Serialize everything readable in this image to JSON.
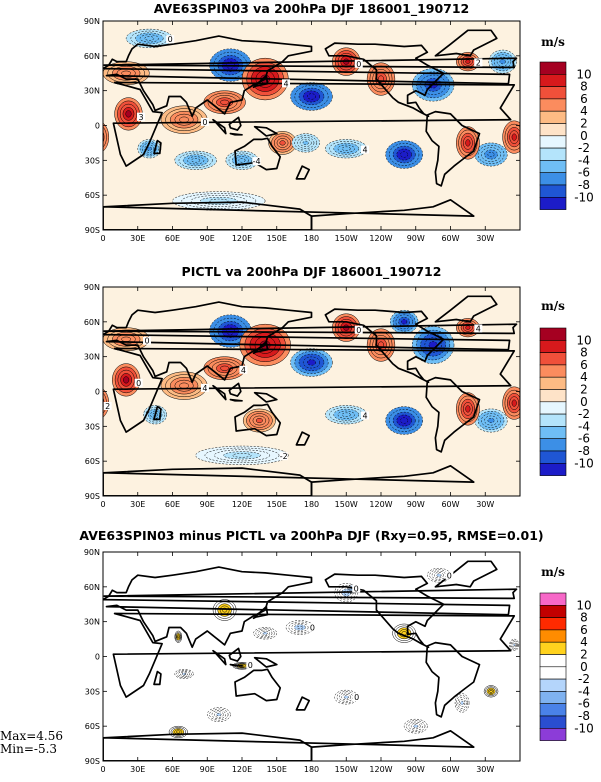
{
  "chart_data": [
    {
      "type": "heatmap",
      "title": "AVE63SPIN03 va 200hPa DJF 186001_190712",
      "unit": "m/s",
      "x_ticks": [
        "0",
        "30E",
        "60E",
        "90E",
        "120E",
        "150E",
        "180",
        "150W",
        "120W",
        "90W",
        "60W",
        "30W"
      ],
      "y_ticks": [
        "90N",
        "60N",
        "30N",
        "0",
        "30S",
        "60S",
        "90S"
      ],
      "colorbar_levels": [
        "10",
        "8",
        "6",
        "4",
        "2",
        "0",
        "-2",
        "-4",
        "-6",
        "-8",
        "-10"
      ],
      "colorbar_colors": [
        "#a50021",
        "#d7191c",
        "#f0503a",
        "#fb8c5e",
        "#fdbb84",
        "#fee3c8",
        "#e6f7ff",
        "#b4e4fb",
        "#6fbef5",
        "#3c8fe6",
        "#1f56d4",
        "#1c1cc8"
      ],
      "contour_labels": [
        "4",
        "0",
        "0",
        "4",
        "-4",
        "0",
        "4",
        "0",
        "2",
        "3"
      ],
      "blobs": [
        {
          "lon": -75,
          "lat": 35,
          "v": -8,
          "rx": 18,
          "ry": 14
        },
        {
          "lon": -45,
          "lat": 55,
          "v": 6,
          "rx": 10,
          "ry": 8
        },
        {
          "lon": -5,
          "lat": -10,
          "v": 7,
          "rx": 10,
          "ry": 14
        },
        {
          "lon": -25,
          "lat": -25,
          "v": -5,
          "rx": 14,
          "ry": 10
        },
        {
          "lon": 22,
          "lat": 10,
          "v": 8,
          "rx": 12,
          "ry": 14
        },
        {
          "lon": 20,
          "lat": 45,
          "v": 3,
          "rx": 20,
          "ry": 10
        },
        {
          "lon": 40,
          "lat": -20,
          "v": -4,
          "rx": 10,
          "ry": 8
        },
        {
          "lon": 70,
          "lat": 5,
          "v": 3,
          "rx": 20,
          "ry": 12
        },
        {
          "lon": 80,
          "lat": -30,
          "v": -3,
          "rx": 18,
          "ry": 8
        },
        {
          "lon": 110,
          "lat": 52,
          "v": -10,
          "rx": 18,
          "ry": 14
        },
        {
          "lon": 140,
          "lat": 40,
          "v": 9,
          "rx": 20,
          "ry": 18
        },
        {
          "lon": 105,
          "lat": 20,
          "v": 5,
          "rx": 18,
          "ry": 10
        },
        {
          "lon": 155,
          "lat": -15,
          "v": 4,
          "rx": 12,
          "ry": 10
        },
        {
          "lon": 120,
          "lat": -30,
          "v": -3,
          "rx": 14,
          "ry": 8
        },
        {
          "lon": 180,
          "lat": 25,
          "v": -10,
          "rx": 18,
          "ry": 12
        },
        {
          "lon": 175,
          "lat": -15,
          "v": -2,
          "rx": 12,
          "ry": 8
        },
        {
          "lon": -150,
          "lat": 55,
          "v": 8,
          "rx": 12,
          "ry": 12
        },
        {
          "lon": -120,
          "lat": 40,
          "v": 5,
          "rx": 12,
          "ry": 14
        },
        {
          "lon": -100,
          "lat": -25,
          "v": -10,
          "rx": 16,
          "ry": 12
        },
        {
          "lon": -150,
          "lat": -20,
          "v": -3,
          "rx": 18,
          "ry": 8
        },
        {
          "lon": -45,
          "lat": -15,
          "v": 6,
          "rx": 10,
          "ry": 14
        },
        {
          "lon": -15,
          "lat": 55,
          "v": -4,
          "rx": 12,
          "ry": 10
        },
        {
          "lon": 40,
          "lat": 75,
          "v": -3,
          "rx": 20,
          "ry": 8
        },
        {
          "lon": 100,
          "lat": -65,
          "v": -1,
          "rx": 40,
          "ry": 8
        }
      ]
    },
    {
      "type": "heatmap",
      "title": "PICTL va 200hPa DJF 186001_190712",
      "unit": "m/s",
      "x_ticks": [
        "0",
        "30E",
        "60E",
        "90E",
        "120E",
        "150E",
        "180",
        "150W",
        "120W",
        "90W",
        "60W",
        "30W"
      ],
      "y_ticks": [
        "90N",
        "60N",
        "30N",
        "0",
        "30S",
        "60S",
        "90S"
      ],
      "colorbar_levels": [
        "10",
        "8",
        "6",
        "4",
        "2",
        "0",
        "-2",
        "-4",
        "-6",
        "-8",
        "-10"
      ],
      "colorbar_colors": [
        "#a50021",
        "#d7191c",
        "#f0503a",
        "#fb8c5e",
        "#fdbb84",
        "#fee3c8",
        "#e6f7ff",
        "#b4e4fb",
        "#6fbef5",
        "#3c8fe6",
        "#1f56d4",
        "#1c1cc8"
      ],
      "contour_labels": [
        "4",
        "0",
        "4",
        "4",
        "0",
        "4",
        "-2",
        "2",
        "0"
      ],
      "blobs": [
        {
          "lon": -75,
          "lat": 40,
          "v": -9,
          "rx": 18,
          "ry": 16
        },
        {
          "lon": -45,
          "lat": 55,
          "v": 6,
          "rx": 10,
          "ry": 8
        },
        {
          "lon": -5,
          "lat": -10,
          "v": 6,
          "rx": 10,
          "ry": 14
        },
        {
          "lon": -25,
          "lat": -25,
          "v": -4,
          "rx": 14,
          "ry": 10
        },
        {
          "lon": 20,
          "lat": 10,
          "v": 8,
          "rx": 12,
          "ry": 14
        },
        {
          "lon": 20,
          "lat": 45,
          "v": 3,
          "rx": 20,
          "ry": 10
        },
        {
          "lon": 45,
          "lat": -20,
          "v": -3,
          "rx": 10,
          "ry": 8
        },
        {
          "lon": 70,
          "lat": 5,
          "v": 3,
          "rx": 20,
          "ry": 12
        },
        {
          "lon": 110,
          "lat": 52,
          "v": -10,
          "rx": 18,
          "ry": 14
        },
        {
          "lon": 140,
          "lat": 40,
          "v": 9,
          "rx": 22,
          "ry": 18
        },
        {
          "lon": 105,
          "lat": 20,
          "v": 5,
          "rx": 18,
          "ry": 10
        },
        {
          "lon": 135,
          "lat": -25,
          "v": 4,
          "rx": 14,
          "ry": 10
        },
        {
          "lon": 180,
          "lat": 25,
          "v": -9,
          "rx": 18,
          "ry": 12
        },
        {
          "lon": -150,
          "lat": 55,
          "v": 8,
          "rx": 12,
          "ry": 12
        },
        {
          "lon": -120,
          "lat": 40,
          "v": 5,
          "rx": 12,
          "ry": 14
        },
        {
          "lon": -100,
          "lat": -25,
          "v": -10,
          "rx": 16,
          "ry": 12
        },
        {
          "lon": -150,
          "lat": -20,
          "v": -3,
          "rx": 18,
          "ry": 8
        },
        {
          "lon": -45,
          "lat": -15,
          "v": 6,
          "rx": 10,
          "ry": 14
        },
        {
          "lon": -100,
          "lat": 60,
          "v": -8,
          "rx": 12,
          "ry": 10
        },
        {
          "lon": 120,
          "lat": -55,
          "v": -1,
          "rx": 40,
          "ry": 8
        }
      ]
    },
    {
      "type": "heatmap",
      "title": "AVE63SPIN03 minus PICTL va 200hPa DJF (Rxy=0.95, RMSE=0.01)",
      "unit": "m/s",
      "stats": {
        "max": "Max=4.56",
        "min": "Min=-5.3"
      },
      "x_ticks": [
        "0",
        "30E",
        "60E",
        "90E",
        "120E",
        "150E",
        "180",
        "150W",
        "120W",
        "90W",
        "60W",
        "30W"
      ],
      "y_ticks": [
        "90N",
        "60N",
        "30N",
        "0",
        "30S",
        "60S",
        "90S"
      ],
      "colorbar_levels": [
        "10",
        "8",
        "6",
        "4",
        "2",
        "0",
        "-2",
        "-4",
        "-6",
        "-8",
        "-10"
      ],
      "colorbar_colors": [
        "#f768c8",
        "#c20000",
        "#ff2a00",
        "#ff8c00",
        "#ffd21e",
        "#ffffff",
        "#ffffff",
        "#b4d5fb",
        "#7fb2f0",
        "#4a82e8",
        "#2a4ed0",
        "#8c3cd8"
      ],
      "contour_labels": [
        "0",
        "0",
        "0",
        "0",
        "0"
      ],
      "blobs": [
        {
          "lon": -150,
          "lat": 55,
          "v": -2.5,
          "rx": 10,
          "ry": 8
        },
        {
          "lon": -145,
          "lat": 58,
          "v": -4.5,
          "rx": 4,
          "ry": 4
        },
        {
          "lon": -100,
          "lat": 20,
          "v": 3.5,
          "rx": 10,
          "ry": 8
        },
        {
          "lon": 105,
          "lat": 40,
          "v": 3.5,
          "rx": 10,
          "ry": 9
        },
        {
          "lon": 170,
          "lat": 25,
          "v": -2.5,
          "rx": 12,
          "ry": 6
        },
        {
          "lon": 140,
          "lat": 20,
          "v": -2.2,
          "rx": 10,
          "ry": 5
        },
        {
          "lon": 65,
          "lat": 17,
          "v": 3,
          "rx": 3,
          "ry": 5
        },
        {
          "lon": 120,
          "lat": -8,
          "v": 3,
          "rx": 8,
          "ry": 3
        },
        {
          "lon": 70,
          "lat": -15,
          "v": -2.2,
          "rx": 8,
          "ry": 4
        },
        {
          "lon": -25,
          "lat": -30,
          "v": 3.5,
          "rx": 6,
          "ry": 5
        },
        {
          "lon": -150,
          "lat": -35,
          "v": -2.2,
          "rx": 10,
          "ry": 6
        },
        {
          "lon": -50,
          "lat": -40,
          "v": -2.2,
          "rx": 6,
          "ry": 8
        },
        {
          "lon": 65,
          "lat": -65,
          "v": 3,
          "rx": 8,
          "ry": 5
        },
        {
          "lon": -70,
          "lat": 70,
          "v": -2.2,
          "rx": 10,
          "ry": 6
        },
        {
          "lon": -5,
          "lat": 10,
          "v": -2.2,
          "rx": 4,
          "ry": 5
        },
        {
          "lon": 100,
          "lat": -50,
          "v": -2.2,
          "rx": 10,
          "ry": 6
        },
        {
          "lon": -90,
          "lat": -60,
          "v": -2.2,
          "rx": 10,
          "ry": 6
        }
      ]
    }
  ]
}
